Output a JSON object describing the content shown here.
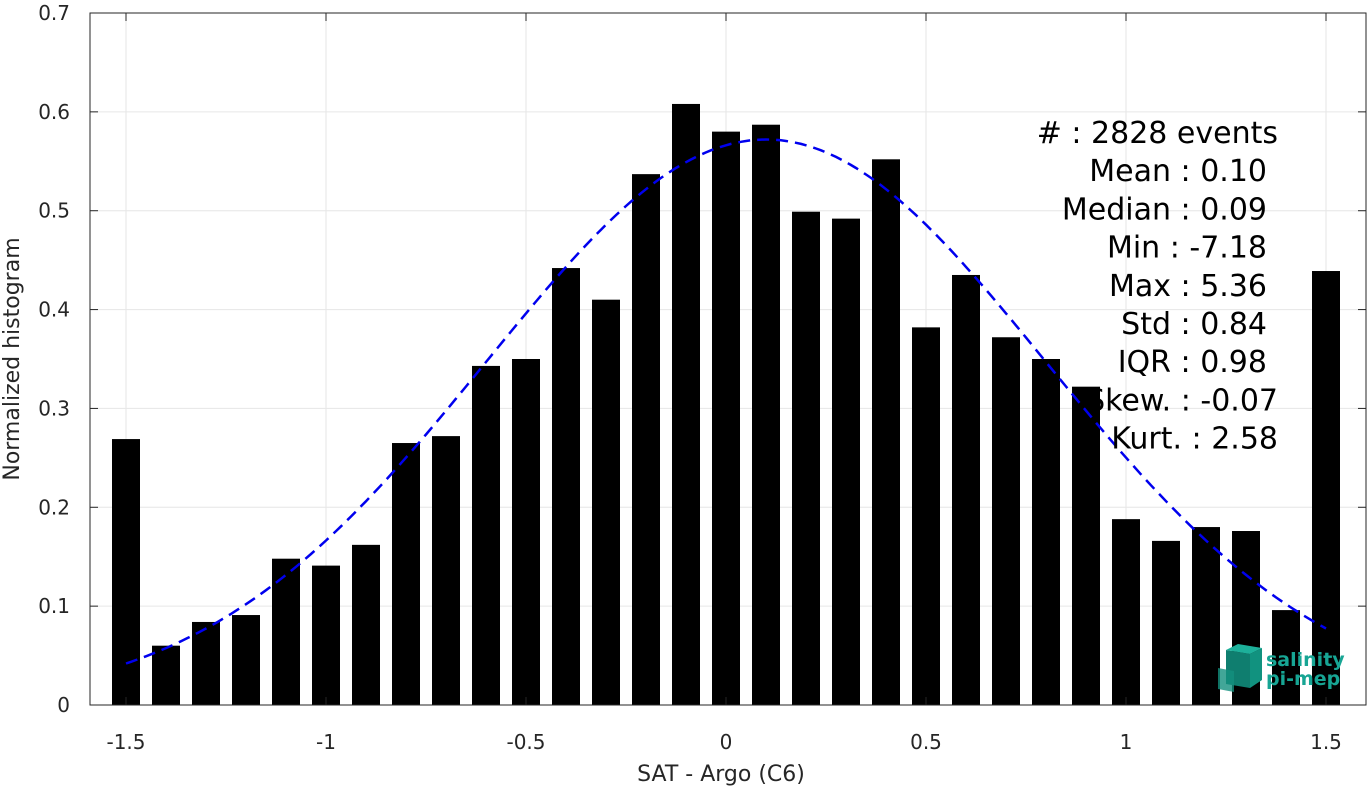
{
  "chart_data": {
    "type": "bar",
    "xlabel": "SAT - Argo (C6)",
    "ylabel": "Normalized histogram",
    "xlim": [
      -1.59,
      1.6
    ],
    "ylim": [
      0,
      0.7
    ],
    "xticks": [
      -1.5,
      -1,
      -0.5,
      0,
      0.5,
      1,
      1.5
    ],
    "xtick_labels": [
      "-1.5",
      "-1",
      "-0.5",
      "0",
      "0.5",
      "1",
      "1.5"
    ],
    "yticks": [
      0,
      0.1,
      0.2,
      0.3,
      0.4,
      0.5,
      0.6,
      0.7
    ],
    "ytick_labels": [
      "0",
      "0.1",
      "0.2",
      "0.3",
      "0.4",
      "0.5",
      "0.6",
      "0.7"
    ],
    "grid": true,
    "bar_width": 0.07,
    "bar_color": "#000000",
    "bars": [
      {
        "x": -1.5,
        "y": 0.269
      },
      {
        "x": -1.4,
        "y": 0.06
      },
      {
        "x": -1.3,
        "y": 0.084
      },
      {
        "x": -1.2,
        "y": 0.091
      },
      {
        "x": -1.1,
        "y": 0.148
      },
      {
        "x": -1.0,
        "y": 0.141
      },
      {
        "x": -0.9,
        "y": 0.162
      },
      {
        "x": -0.8,
        "y": 0.265
      },
      {
        "x": -0.7,
        "y": 0.272
      },
      {
        "x": -0.6,
        "y": 0.343
      },
      {
        "x": -0.5,
        "y": 0.35
      },
      {
        "x": -0.4,
        "y": 0.442
      },
      {
        "x": -0.3,
        "y": 0.41
      },
      {
        "x": -0.2,
        "y": 0.537
      },
      {
        "x": -0.1,
        "y": 0.608
      },
      {
        "x": 0.0,
        "y": 0.58
      },
      {
        "x": 0.1,
        "y": 0.587
      },
      {
        "x": 0.2,
        "y": 0.499
      },
      {
        "x": 0.3,
        "y": 0.492
      },
      {
        "x": 0.4,
        "y": 0.552
      },
      {
        "x": 0.5,
        "y": 0.382
      },
      {
        "x": 0.6,
        "y": 0.435
      },
      {
        "x": 0.7,
        "y": 0.372
      },
      {
        "x": 0.8,
        "y": 0.35
      },
      {
        "x": 0.9,
        "y": 0.322
      },
      {
        "x": 1.0,
        "y": 0.188
      },
      {
        "x": 1.1,
        "y": 0.166
      },
      {
        "x": 1.2,
        "y": 0.18
      },
      {
        "x": 1.3,
        "y": 0.176
      },
      {
        "x": 1.4,
        "y": 0.096
      },
      {
        "x": 1.5,
        "y": 0.439
      }
    ],
    "fit_curve": {
      "style": "dashed",
      "color": "#0000ee",
      "mean": 0.1,
      "std": 0.7,
      "peak": 0.572,
      "x_range": [
        -1.5,
        1.5
      ]
    },
    "stats": [
      {
        "label": "#  ",
        "value": ": 2828 events"
      },
      {
        "label": "Mean ",
        "value": ": 0.10"
      },
      {
        "label": "Median ",
        "value": ": 0.09"
      },
      {
        "label": "Min ",
        "value": ": -7.18"
      },
      {
        "label": "Max ",
        "value": ": 5.36"
      },
      {
        "label": "Std ",
        "value": ": 0.84"
      },
      {
        "label": "IQR ",
        "value": ": 0.98"
      },
      {
        "label": "Skew. ",
        "value": ": -0.07"
      },
      {
        "label": "Kurt. ",
        "value": ": 2.58"
      }
    ]
  },
  "logo": {
    "line1": "salinity",
    "line2": "pi-mep",
    "color": "#17a594"
  }
}
